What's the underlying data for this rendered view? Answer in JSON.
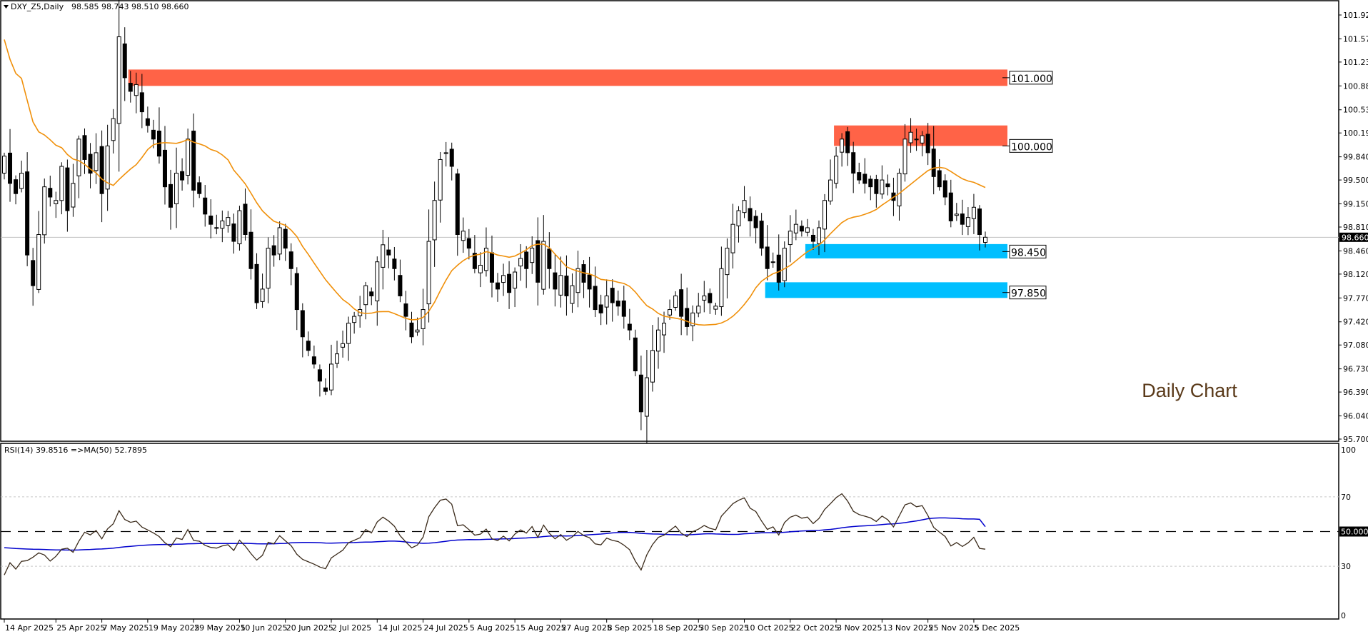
{
  "header": {
    "symbol_label": "DXY_Z5,Daily",
    "ohlc_text": "98.585 98.743 98.510 98.660"
  },
  "indicator_header": "RSI(14) 39.8516  =>MA(50) 52.7895",
  "annotation": "Daily Chart",
  "current_price_label": "98.660",
  "colors": {
    "resistance_zone": "#FF6347",
    "support_zone": "#00BFFF",
    "moving_average": "#F0900A",
    "rsi_line": "#3A2A1A",
    "rsi_ma_line": "#0000CD",
    "annotation": "#5A3A1A",
    "bull_candle": "#FFFFFF",
    "bear_candle": "#000000"
  },
  "chart_data": [
    {
      "type": "candlestick",
      "title": "DXY_Z5,Daily",
      "x_start_date": "2025-04-14",
      "x_end_date": "2025-12-09",
      "last_bar": {
        "open": 98.585,
        "high": 98.743,
        "low": 98.51,
        "close": 98.66
      },
      "closes": [
        99.85,
        99.45,
        99.3,
        99.6,
        98.4,
        97.95,
        98.7,
        99.4,
        99.25,
        99.2,
        99.7,
        99.05,
        99.45,
        100.1,
        99.8,
        99.6,
        99.9,
        99.3,
        100.0,
        100.4,
        101.6,
        101.0,
        100.8,
        100.9,
        100.5,
        100.3,
        100.1,
        99.85,
        99.4,
        99.1,
        99.6,
        99.5,
        100.1,
        99.35,
        99.3,
        99.0,
        98.85,
        98.8,
        98.9,
        98.95,
        98.6,
        99.05,
        98.7,
        98.2,
        97.7,
        97.9,
        98.5,
        98.4,
        98.8,
        98.5,
        98.2,
        97.6,
        97.2,
        97.0,
        96.8,
        96.55,
        96.4,
        96.8,
        96.95,
        97.1,
        97.4,
        97.5,
        97.6,
        97.95,
        97.8,
        98.3,
        98.55,
        98.4,
        98.2,
        97.8,
        97.5,
        97.2,
        97.3,
        97.6,
        98.6,
        99.2,
        99.8,
        99.9,
        99.7,
        98.7,
        98.75,
        98.5,
        98.2,
        98.25,
        98.5,
        98.0,
        97.9,
        98.1,
        97.85,
        98.15,
        98.35,
        98.2,
        98.5,
        98.0,
        98.6,
        98.2,
        97.9,
        98.1,
        97.8,
        97.95,
        98.2,
        98.0,
        97.9,
        97.6,
        97.55,
        97.8,
        97.7,
        97.65,
        97.5,
        97.3,
        96.7,
        96.1,
        96.6,
        97.0,
        97.3,
        97.4,
        97.6,
        97.8,
        97.5,
        97.35,
        97.55,
        97.65,
        97.8,
        97.7,
        97.65,
        98.2,
        98.5,
        98.85,
        99.05,
        99.2,
        98.9,
        98.8,
        98.5,
        98.2,
        98.3,
        98.0,
        98.5,
        98.75,
        98.85,
        98.75,
        98.8,
        98.6,
        98.8,
        99.2,
        99.5,
        99.85,
        100.1,
        99.9,
        99.6,
        99.5,
        99.45,
        99.4,
        99.3,
        99.5,
        99.4,
        99.2,
        99.6,
        100.1,
        100.2,
        100.1,
        100.15,
        99.9,
        99.55,
        99.4,
        99.25,
        98.9,
        99.0,
        98.85,
        98.95,
        99.1,
        98.7,
        98.66
      ],
      "moving_average": {
        "visible": true
      },
      "y_axis": {
        "ylim": [
          95.7,
          101.92
        ],
        "ticks": [
          "101.920",
          "101.570",
          "101.230",
          "100.880",
          "100.530",
          "100.190",
          "99.840",
          "99.500",
          "99.150",
          "98.810",
          "98.460",
          "98.120",
          "97.770",
          "97.420",
          "97.080",
          "96.730",
          "96.390",
          "96.040",
          "95.700"
        ]
      },
      "x_axis": {
        "ticks": [
          {
            "date": "2025-04-14",
            "label": "14 Apr 2025"
          },
          {
            "date": "2025-04-25",
            "label": "25 Apr 2025"
          },
          {
            "date": "2025-05-07",
            "label": "7 May 2025"
          },
          {
            "date": "2025-05-19",
            "label": "19 May 2025"
          },
          {
            "date": "2025-05-29",
            "label": "29 May 2025"
          },
          {
            "date": "2025-06-10",
            "label": "10 Jun 2025"
          },
          {
            "date": "2025-06-20",
            "label": "20 Jun 2025"
          },
          {
            "date": "2025-07-02",
            "label": "2 Jul 2025"
          },
          {
            "date": "2025-07-14",
            "label": "14 Jul 2025"
          },
          {
            "date": "2025-07-24",
            "label": "24 Jul 2025"
          },
          {
            "date": "2025-08-05",
            "label": "5 Aug 2025"
          },
          {
            "date": "2025-08-15",
            "label": "15 Aug 2025"
          },
          {
            "date": "2025-08-27",
            "label": "27 Aug 2025"
          },
          {
            "date": "2025-09-08",
            "label": "8 Sep 2025"
          },
          {
            "date": "2025-09-18",
            "label": "18 Sep 2025"
          },
          {
            "date": "2025-09-30",
            "label": "30 Sep 2025"
          },
          {
            "date": "2025-10-10",
            "label": "10 Oct 2025"
          },
          {
            "date": "2025-10-22",
            "label": "22 Oct 2025"
          },
          {
            "date": "2025-11-03",
            "label": "3 Nov 2025"
          },
          {
            "date": "2025-11-13",
            "label": "13 Nov 2025"
          },
          {
            "date": "2025-11-25",
            "label": "25 Nov 2025"
          },
          {
            "date": "2025-12-05",
            "label": "5 Dec 2025"
          }
        ]
      },
      "zones": [
        {
          "label": "101.000",
          "kind": "resistance",
          "start_date": "2025-05-14",
          "top": 101.12,
          "bottom": 100.88,
          "level": 101.0
        },
        {
          "label": "100.000",
          "kind": "resistance",
          "start_date": "2025-11-03",
          "top": 100.3,
          "bottom": 100.0,
          "level": 100.0
        },
        {
          "label": "98.450",
          "kind": "support",
          "start_date": "2025-10-27",
          "top": 98.56,
          "bottom": 98.35,
          "level": 98.45
        },
        {
          "label": "97.850",
          "kind": "support",
          "start_date": "2025-10-16",
          "top": 98.0,
          "bottom": 97.77,
          "level": 97.85
        }
      ]
    },
    {
      "type": "line",
      "title": "RSI(14) 39.8516  =>MA(50) 52.7895",
      "series": [
        {
          "name": "RSI(14)",
          "last": 39.8516
        },
        {
          "name": "MA(50)",
          "last": 52.7895
        }
      ],
      "ylim": [
        0,
        100
      ],
      "levels": [
        70,
        50,
        30
      ],
      "ticks": [
        "100",
        "70",
        "50.0000",
        "30",
        "0"
      ]
    }
  ]
}
